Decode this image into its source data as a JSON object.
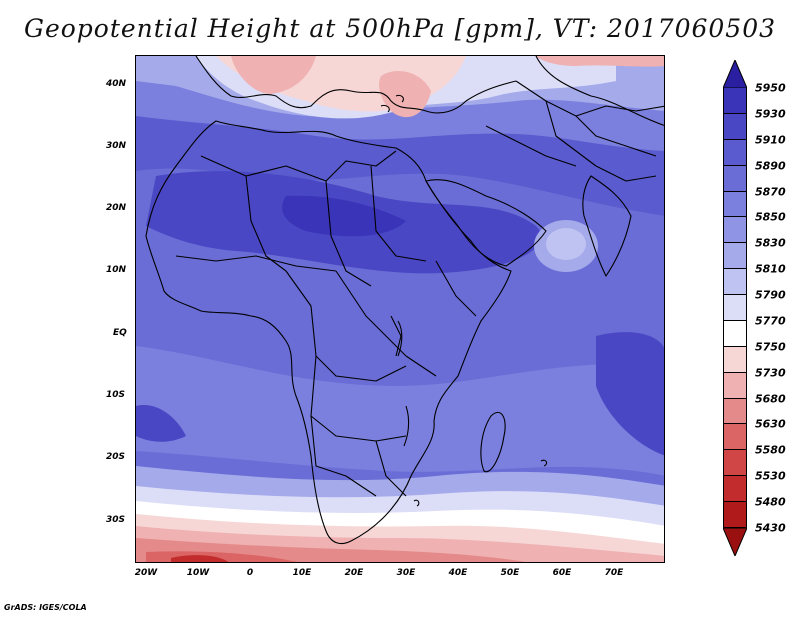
{
  "title": "Geopotential Height at 500hPa [gpm], VT: 2017060503",
  "credit": "GrADS: IGES/COLA",
  "lat_ticks": [
    "40N",
    "30N",
    "20N",
    "10N",
    "EQ",
    "10S",
    "20S",
    "30S"
  ],
  "lon_ticks": [
    "20W",
    "10W",
    "0",
    "10E",
    "20E",
    "30E",
    "40E",
    "50E",
    "60E",
    "70E"
  ],
  "colorbar": {
    "labels": [
      "5950",
      "5930",
      "5910",
      "5890",
      "5870",
      "5850",
      "5830",
      "5810",
      "5790",
      "5770",
      "5750",
      "5730",
      "5680",
      "5630",
      "5580",
      "5530",
      "5480",
      "5430"
    ],
    "colors": [
      "#2a1fa0",
      "#3a34b8",
      "#4a47c4",
      "#5a5bce",
      "#6a6dd6",
      "#7b80de",
      "#8f94e4",
      "#a5aaeb",
      "#bfc3f2",
      "#dcdef8",
      "#ffffff",
      "#f7d6d6",
      "#efb1b1",
      "#e58a8a",
      "#db6464",
      "#d04545",
      "#c22c2c",
      "#b01a1a",
      "#9a1010"
    ]
  }
}
